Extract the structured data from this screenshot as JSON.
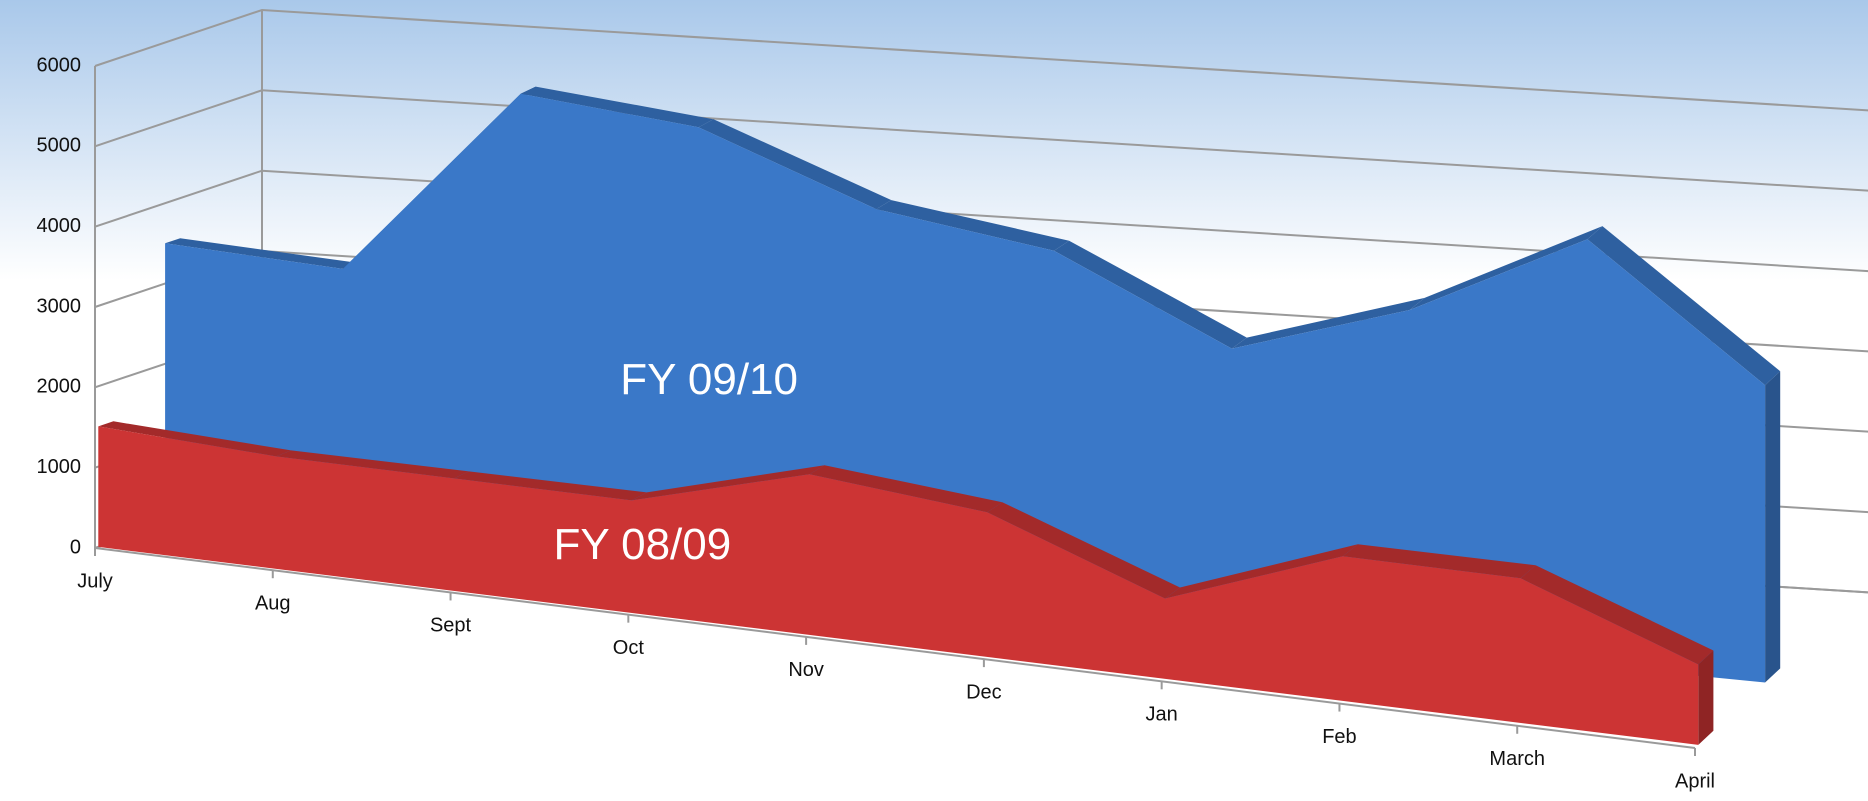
{
  "chart_data": {
    "type": "area",
    "categories": [
      "July",
      "Aug",
      "Sept",
      "Oct",
      "Nov",
      "Dec",
      "Jan",
      "Feb",
      "March",
      "April"
    ],
    "series": [
      {
        "name": "FY 08/09",
        "color": "#cc3434",
        "values": [
          1500,
          1400,
          1400,
          1400,
          2000,
          1800,
          1000,
          1800,
          1800,
          1000
        ]
      },
      {
        "name": "FY 09/10",
        "color": "#3a78c8",
        "values": [
          3500,
          3400,
          5800,
          5600,
          4800,
          4500,
          3500,
          4200,
          5300,
          3700
        ]
      }
    ],
    "ylim": [
      0,
      6000
    ],
    "yticks": [
      0,
      1000,
      2000,
      3000,
      4000,
      5000,
      6000
    ],
    "grid": true
  }
}
